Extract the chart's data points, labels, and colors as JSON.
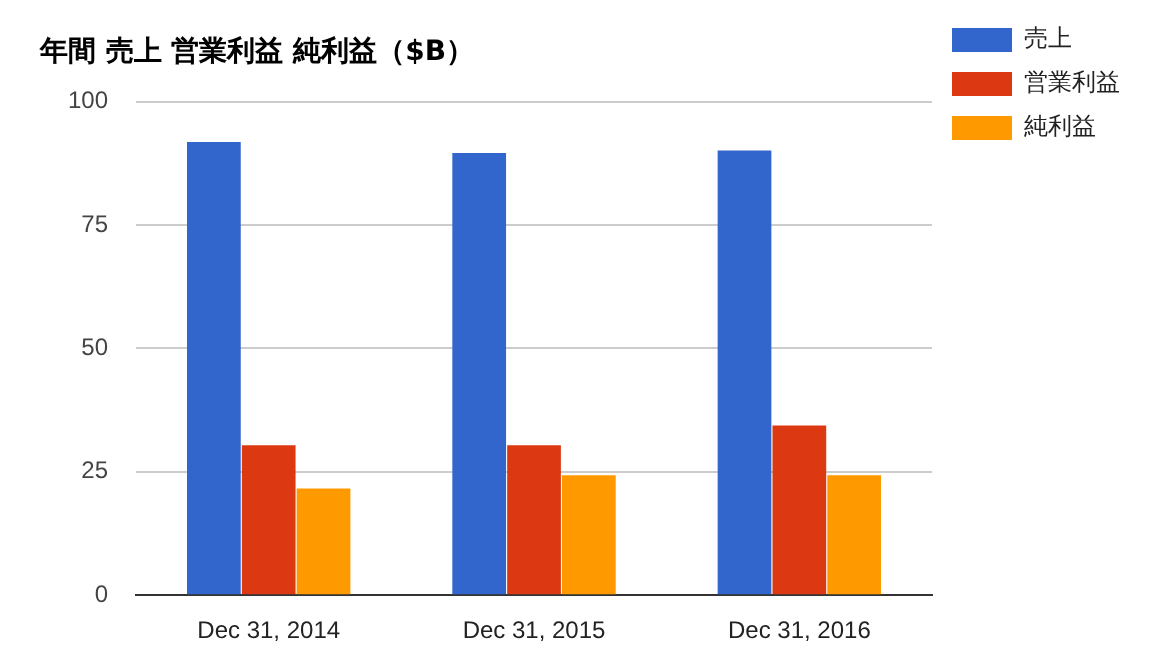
{
  "chart_data": {
    "type": "bar",
    "title": "年間 売上 営業利益 純利益（$B）",
    "categories": [
      "Dec 31, 2014",
      "Dec 31, 2015",
      "Dec 31, 2016"
    ],
    "series": [
      {
        "name": "売上",
        "color": "#3366cc",
        "values": [
          91.8,
          89.6,
          90.1
        ]
      },
      {
        "name": "営業利益",
        "color": "#dc3912",
        "values": [
          30.4,
          30.4,
          34.4
        ]
      },
      {
        "name": "純利益",
        "color": "#ff9900",
        "values": [
          21.6,
          24.3,
          24.3
        ]
      }
    ],
    "ylim": [
      0,
      100
    ],
    "yticks": [
      0,
      25,
      50,
      75,
      100
    ],
    "grid": "y",
    "legend": "top right"
  }
}
